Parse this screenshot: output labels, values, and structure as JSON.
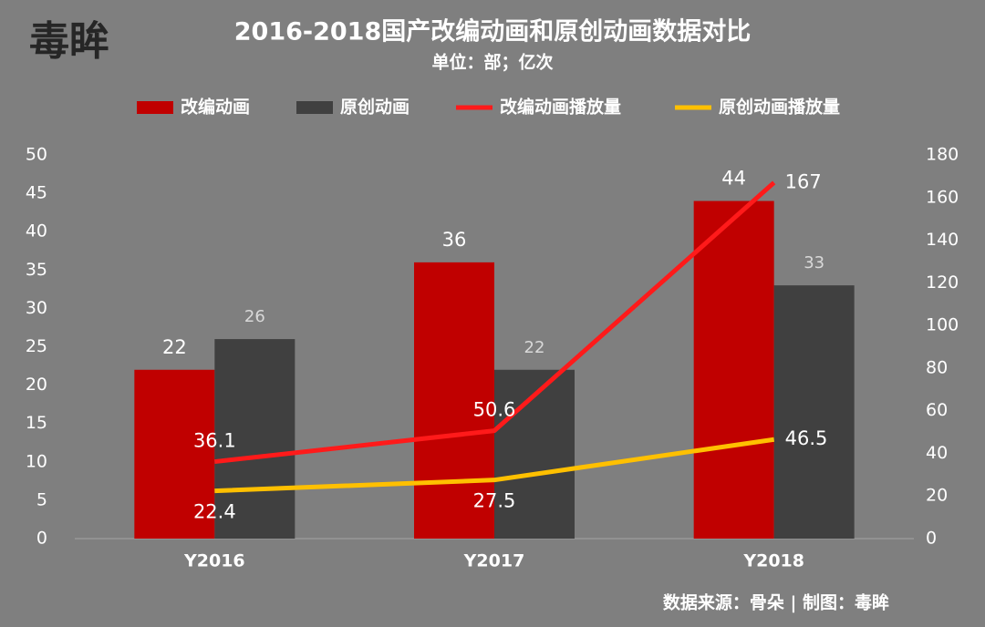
{
  "chart_data": {
    "type": "bar",
    "logo": "毒眸",
    "title": "2016-2018国产改编动画和原创动画数据对比",
    "subtitle": "单位：部；亿次",
    "source": "数据来源：骨朵 | 制图：毒眸",
    "categories": [
      "Y2016",
      "Y2017",
      "Y2018"
    ],
    "ylim": [
      0,
      50
    ],
    "yticks": [
      0,
      5,
      10,
      15,
      20,
      25,
      30,
      35,
      40,
      45,
      50
    ],
    "y2lim": [
      0,
      180
    ],
    "y2ticks": [
      0,
      20,
      40,
      60,
      80,
      100,
      120,
      140,
      160,
      180
    ],
    "grid": false,
    "legend": "top",
    "series": [
      {
        "name": "改编动画",
        "type": "bar",
        "color": "#c00000",
        "values": [
          22,
          36,
          44
        ]
      },
      {
        "name": "原创动画",
        "type": "bar",
        "color": "#404040",
        "values": [
          26,
          22,
          33
        ]
      },
      {
        "name": "改编动画播放量",
        "type": "line",
        "axis": "y2",
        "color": "#ff1a1a",
        "values": [
          36.1,
          50.6,
          167
        ]
      },
      {
        "name": "原创动画播放量",
        "type": "line",
        "axis": "y2",
        "color": "#ffc000",
        "values": [
          22.4,
          27.5,
          46.5
        ]
      }
    ]
  }
}
